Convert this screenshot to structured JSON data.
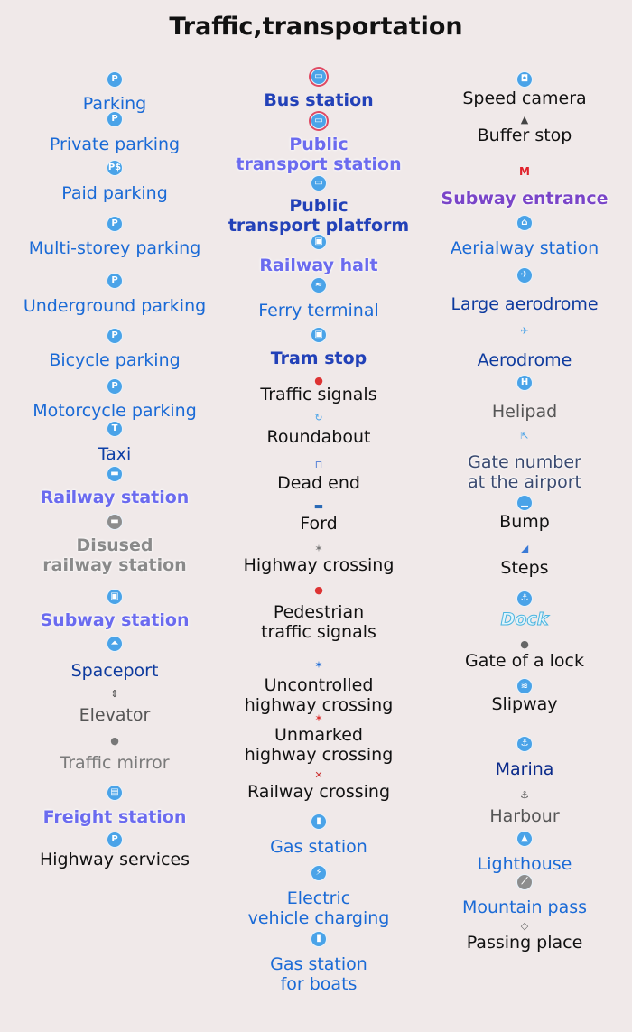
{
  "title": "Traffic,transportation",
  "columns": [
    [
      {
        "name": "parking",
        "label": "Parking",
        "icon": "parking-icon",
        "glyph": "P"
      },
      {
        "name": "private-parking",
        "label": "Private parking",
        "icon": "private-parking-icon",
        "glyph": "P"
      },
      {
        "name": "paid-parking",
        "label": "Paid parking",
        "icon": "paid-parking-icon",
        "glyph": "P$"
      },
      {
        "name": "multi-storey-parking",
        "label": "Multi-storey parking",
        "icon": "multi-storey-parking-icon",
        "glyph": "P"
      },
      {
        "name": "underground-parking",
        "label": "Underground parking",
        "icon": "underground-parking-icon",
        "glyph": "P"
      },
      {
        "name": "bicycle-parking",
        "label": "Bicycle parking",
        "icon": "bicycle-parking-icon",
        "glyph": "P"
      },
      {
        "name": "motorcycle-parking",
        "label": "Motorcycle parking",
        "icon": "motorcycle-parking-icon",
        "glyph": "P"
      },
      {
        "name": "taxi",
        "label": "Taxi",
        "icon": "taxi-icon",
        "glyph": "T"
      },
      {
        "name": "railway-station",
        "label": "Railway station",
        "icon": "train-icon",
        "glyph": "▬"
      },
      {
        "name": "disused-railway-station",
        "label": "Disused\nrailway station",
        "icon": "disused-train-icon",
        "glyph": "▬"
      },
      {
        "name": "subway-station",
        "label": "Subway station",
        "icon": "subway-icon",
        "glyph": "▣"
      },
      {
        "name": "spaceport",
        "label": "Spaceport",
        "icon": "rocket-icon",
        "glyph": "⏶"
      },
      {
        "name": "elevator",
        "label": "Elevator",
        "icon": "elevator-icon",
        "glyph": "⇕"
      },
      {
        "name": "traffic-mirror",
        "label": "Traffic mirror",
        "icon": "mirror-icon",
        "glyph": "●"
      },
      {
        "name": "freight-station",
        "label": "Freight station",
        "icon": "freight-icon",
        "glyph": "▤"
      },
      {
        "name": "highway-services",
        "label": "Highway services",
        "icon": "highway-services-icon",
        "glyph": "P"
      }
    ],
    [
      {
        "name": "bus-station",
        "label": "Bus station",
        "icon": "bus-station-icon",
        "glyph": "▭"
      },
      {
        "name": "public-transport-station",
        "label": "Public\ntransport station",
        "icon": "bus-icon",
        "glyph": "▭"
      },
      {
        "name": "public-transport-platform",
        "label": "Public\ntransport platform",
        "icon": "bus-platform-icon",
        "glyph": "▭"
      },
      {
        "name": "railway-halt",
        "label": "Railway halt",
        "icon": "train-halt-icon",
        "glyph": "▣"
      },
      {
        "name": "ferry-terminal",
        "label": "Ferry terminal",
        "icon": "ferry-icon",
        "glyph": "≈"
      },
      {
        "name": "tram-stop",
        "label": "Tram stop",
        "icon": "tram-icon",
        "glyph": "▣"
      },
      {
        "name": "traffic-signals",
        "label": "Traffic signals",
        "icon": "traffic-light-icon",
        "glyph": "●"
      },
      {
        "name": "roundabout",
        "label": "Roundabout",
        "icon": "roundabout-icon",
        "glyph": "↻"
      },
      {
        "name": "dead-end",
        "label": "Dead end",
        "icon": "dead-end-icon",
        "glyph": "⊓"
      },
      {
        "name": "ford",
        "label": "Ford",
        "icon": "ford-icon",
        "glyph": "▬"
      },
      {
        "name": "highway-crossing",
        "label": "Highway crossing",
        "icon": "pedestrian-icon",
        "glyph": "✶"
      },
      {
        "name": "pedestrian-traffic-signals",
        "label": "Pedestrian\ntraffic signals",
        "icon": "pedestrian-light-icon",
        "glyph": "●"
      },
      {
        "name": "uncontrolled-highway-crossing",
        "label": "Uncontrolled\nhighway crossing",
        "icon": "pedestrian-blue-icon",
        "glyph": "✶"
      },
      {
        "name": "unmarked-highway-crossing",
        "label": "Unmarked\nhighway crossing",
        "icon": "pedestrian-red-icon",
        "glyph": "✶"
      },
      {
        "name": "railway-crossing",
        "label": "Railway crossing",
        "icon": "railway-crossing-icon",
        "glyph": "✕"
      },
      {
        "name": "gas-station",
        "label": "Gas station",
        "icon": "fuel-icon",
        "glyph": "▮"
      },
      {
        "name": "electric-vehicle-charging",
        "label": "Electric\nvehicle charging",
        "icon": "ev-charging-icon",
        "glyph": "⚡"
      },
      {
        "name": "gas-station-for-boats",
        "label": "Gas station\nfor boats",
        "icon": "boat-fuel-icon",
        "glyph": "▮"
      }
    ],
    [
      {
        "name": "speed-camera",
        "label": "Speed camera",
        "icon": "camera-icon",
        "glyph": "◘"
      },
      {
        "name": "buffer-stop",
        "label": "Buffer stop",
        "icon": "buffer-stop-icon",
        "glyph": "▲"
      },
      {
        "name": "subway-entrance",
        "label": "Subway entrance",
        "icon": "metro-icon",
        "glyph": "M"
      },
      {
        "name": "aerialway-station",
        "label": "Aerialway station",
        "icon": "aerialway-icon",
        "glyph": "⌂"
      },
      {
        "name": "large-aerodrome",
        "label": "Large aerodrome",
        "icon": "plane-icon",
        "glyph": "✈"
      },
      {
        "name": "aerodrome",
        "label": "Aerodrome",
        "icon": "small-plane-icon",
        "glyph": "✈"
      },
      {
        "name": "helipad",
        "label": "Helipad",
        "icon": "helipad-icon",
        "glyph": "H"
      },
      {
        "name": "gate-number",
        "label": "Gate number\nat the airport",
        "icon": "gate-icon",
        "glyph": "⇱"
      },
      {
        "name": "bump",
        "label": "Bump",
        "icon": "bump-icon",
        "glyph": "▁"
      },
      {
        "name": "steps",
        "label": "Steps",
        "icon": "steps-icon",
        "glyph": "◢"
      },
      {
        "name": "dock",
        "label": "Dock",
        "icon": "dock-icon",
        "glyph": "⚓"
      },
      {
        "name": "gate-of-a-lock",
        "label": "Gate of a lock",
        "icon": "lock-gate-icon",
        "glyph": "●"
      },
      {
        "name": "slipway",
        "label": "Slipway",
        "icon": "slipway-icon",
        "glyph": "≋"
      },
      {
        "name": "marina",
        "label": "Marina",
        "icon": "anchor-icon",
        "glyph": "⚓"
      },
      {
        "name": "harbour",
        "label": "Harbour",
        "icon": "harbour-icon",
        "glyph": "⚓"
      },
      {
        "name": "lighthouse",
        "label": "Lighthouse",
        "icon": "lighthouse-icon",
        "glyph": "▲"
      },
      {
        "name": "mountain-pass",
        "label": "Mountain pass",
        "icon": "mountain-pass-icon",
        "glyph": "⟋"
      },
      {
        "name": "passing-place",
        "label": "Passing place",
        "icon": "passing-place-icon",
        "glyph": "◇"
      }
    ]
  ]
}
